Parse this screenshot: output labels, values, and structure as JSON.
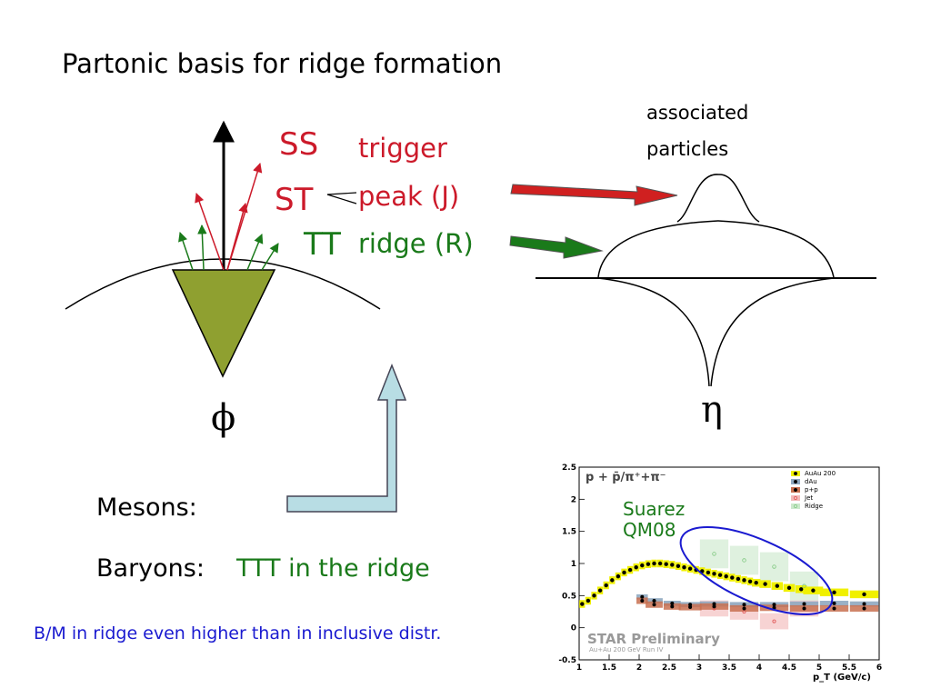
{
  "title": "Partonic basis for ridge formation",
  "left_diagram": {
    "ss": "SS",
    "st": "ST",
    "tt": "TT",
    "trigger": "trigger",
    "peak": "peak (J)",
    "ridge": "ridge (R)",
    "phi": "ϕ"
  },
  "right_diagram": {
    "assoc_line1": "associated",
    "assoc_line2": "particles",
    "eta": "η"
  },
  "bottom": {
    "mesons": "Mesons:",
    "baryons": "Baryons:",
    "baryons_value": "TTT in the ridge",
    "note": "B/M in ridge even higher than in inclusive distr."
  },
  "plot": {
    "header": "p + p̄/π⁺+π⁻",
    "annotation_line1": "Suarez",
    "annotation_line2": "QM08",
    "watermark": "STAR Preliminary",
    "watermark_sub": "Au+Au 200 GeV Run IV",
    "xlabel": "p_T (GeV/c)",
    "legend": [
      "AuAu 200",
      "dAu",
      "p+p",
      "Jet",
      "Ridge"
    ],
    "colors": {
      "auau": "#f0f000",
      "dau": "#8fa8c0",
      "pp": "#c87050",
      "jet": "#e05050",
      "ridge": "#80c880",
      "ellipse": "#1a1ad0"
    }
  },
  "chart_data": {
    "type": "scatter",
    "xlim": [
      1,
      6
    ],
    "ylim": [
      -0.5,
      2.5
    ],
    "xticks": [
      "1",
      "1.5",
      "2",
      "2.5",
      "3",
      "3.5",
      "4",
      "4.5",
      "5",
      "5.5",
      "6"
    ],
    "yticks": [
      "-0.5",
      "0",
      "0.5",
      "1",
      "1.5",
      "2",
      "2.5"
    ],
    "series": [
      {
        "name": "AuAu 200",
        "x": [
          1.05,
          1.15,
          1.25,
          1.35,
          1.45,
          1.55,
          1.65,
          1.75,
          1.85,
          1.95,
          2.05,
          2.15,
          2.25,
          2.35,
          2.45,
          2.55,
          2.65,
          2.75,
          2.85,
          2.95,
          3.05,
          3.15,
          3.25,
          3.35,
          3.45,
          3.55,
          3.65,
          3.75,
          3.85,
          3.95,
          4.1,
          4.3,
          4.5,
          4.7,
          4.9,
          5.25,
          5.75
        ],
        "y": [
          0.37,
          0.42,
          0.5,
          0.58,
          0.66,
          0.74,
          0.8,
          0.86,
          0.9,
          0.94,
          0.97,
          0.99,
          1.0,
          1.0,
          0.99,
          0.98,
          0.96,
          0.94,
          0.92,
          0.9,
          0.88,
          0.86,
          0.84,
          0.82,
          0.8,
          0.78,
          0.76,
          0.74,
          0.72,
          0.7,
          0.68,
          0.65,
          0.62,
          0.6,
          0.58,
          0.55,
          0.52
        ]
      },
      {
        "name": "dAu",
        "x": [
          2.05,
          2.25,
          2.55,
          2.85,
          3.25,
          3.75,
          4.25,
          4.75,
          5.25,
          5.75
        ],
        "y": [
          0.48,
          0.42,
          0.38,
          0.36,
          0.37,
          0.36,
          0.36,
          0.37,
          0.38,
          0.37
        ]
      },
      {
        "name": "p+p",
        "x": [
          2.05,
          2.25,
          2.55,
          2.85,
          3.25,
          3.75,
          4.25,
          4.75,
          5.25,
          5.75
        ],
        "y": [
          0.42,
          0.36,
          0.33,
          0.32,
          0.33,
          0.3,
          0.31,
          0.3,
          0.3,
          0.3
        ]
      },
      {
        "name": "Jet",
        "x": [
          3.25,
          3.75,
          4.25,
          4.75
        ],
        "y": [
          0.3,
          0.25,
          0.1,
          0.3
        ]
      },
      {
        "name": "Ridge",
        "x": [
          3.25,
          3.75,
          4.25,
          4.75
        ],
        "y": [
          1.15,
          1.05,
          0.95,
          0.65
        ]
      }
    ]
  }
}
